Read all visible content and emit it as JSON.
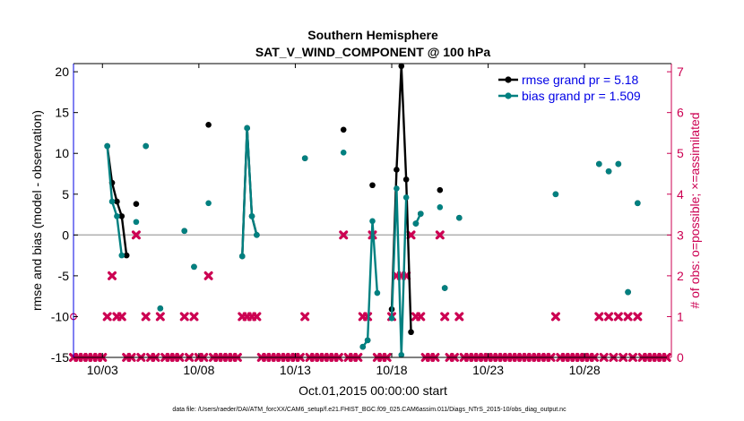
{
  "chart_data": {
    "type": "line",
    "title": "Southern Hemisphere",
    "subtitle": "SAT_V_WIND_COMPONENT @ 100 hPa",
    "xlabel": "Oct.01,2015 00:00:00 start",
    "ylabel_left": "rmse and bias (model - observation)",
    "ylabel_right": "# of obs: o=possible; ×=assimilated",
    "footnote": "data file: /Users/raeder/DAI/ATM_forcXX/CAM6_setup/f.e21.FHIST_BGC.f09_025.CAM6assim.011/Diags_NTrS_2015-10/obs_diag_output.nc",
    "xlim": [
      1.0,
      32.0
    ],
    "ylim_left": [
      -15,
      21
    ],
    "ylim_right": [
      0,
      7.2
    ],
    "yticks_left": [
      -15,
      -10,
      -5,
      0,
      5,
      10,
      15,
      20
    ],
    "yticks_right": [
      0,
      1,
      2,
      3,
      4,
      5,
      6,
      7
    ],
    "xticks": [
      {
        "x": 2.5,
        "label": "10/03"
      },
      {
        "x": 7.5,
        "label": "10/08"
      },
      {
        "x": 12.5,
        "label": "10/13"
      },
      {
        "x": 17.5,
        "label": "10/18"
      },
      {
        "x": 22.5,
        "label": "10/23"
      },
      {
        "x": 27.5,
        "label": "10/28"
      }
    ],
    "legend": [
      {
        "label": "rmse grand pr = 5.18",
        "color": "#000000"
      },
      {
        "label": "bias grand pr = 1.509",
        "color": "#008080"
      }
    ],
    "zero_line_color": "#b3b3b3",
    "colors": {
      "rmse": "#000000",
      "bias": "#008080",
      "obs": "#cc0052"
    },
    "series": [
      {
        "name": "rmse",
        "segments": [
          [
            [
              2.75,
              10.9
            ],
            [
              3.0,
              6.4
            ],
            [
              3.25,
              4.1
            ],
            [
              3.5,
              2.3
            ],
            [
              3.75,
              -2.5
            ]
          ],
          [
            [
              4.25,
              3.8
            ]
          ],
          [
            [
              4.75,
              10.9
            ]
          ],
          [
            [
              5.5,
              -9.0
            ]
          ],
          [
            [
              6.75,
              0.5
            ]
          ],
          [
            [
              7.25,
              -3.9
            ]
          ],
          [
            [
              8.0,
              13.5
            ]
          ],
          [
            [
              9.75,
              -2.6
            ],
            [
              10.0,
              13.1
            ],
            [
              10.25,
              2.3
            ],
            [
              10.5,
              0.0
            ]
          ],
          [
            [
              13.0,
              9.4
            ]
          ],
          [
            [
              15.0,
              12.9
            ]
          ],
          [
            [
              16.0,
              -13.7
            ]
          ],
          [
            [
              16.25,
              -12.9
            ]
          ],
          [
            [
              16.5,
              6.1
            ]
          ],
          [
            [
              17.5,
              -9.1
            ],
            [
              17.75,
              8.0
            ],
            [
              18.0,
              20.7
            ],
            [
              18.25,
              6.8
            ],
            [
              18.5,
              -11.9
            ]
          ],
          [
            [
              18.75,
              1.4
            ]
          ],
          [
            [
              19.0,
              2.6
            ]
          ],
          [
            [
              20.0,
              5.5
            ]
          ],
          [
            [
              20.25,
              -6.5
            ]
          ],
          [
            [
              21.0,
              2.1
            ]
          ],
          [
            [
              26.0,
              5.0
            ]
          ],
          [
            [
              28.25,
              8.7
            ]
          ],
          [
            [
              28.75,
              7.8
            ]
          ],
          [
            [
              29.25,
              8.7
            ]
          ],
          [
            [
              29.75,
              -7.0
            ]
          ],
          [
            [
              30.25,
              3.9
            ]
          ]
        ]
      },
      {
        "name": "bias",
        "segments": [
          [
            [
              2.75,
              10.9
            ],
            [
              3.0,
              4.1
            ],
            [
              3.25,
              2.3
            ],
            [
              3.5,
              -2.5
            ]
          ],
          [
            [
              4.25,
              1.6
            ]
          ],
          [
            [
              4.75,
              10.9
            ]
          ],
          [
            [
              5.5,
              -9.0
            ]
          ],
          [
            [
              6.75,
              0.5
            ]
          ],
          [
            [
              7.25,
              -3.9
            ]
          ],
          [
            [
              8.0,
              3.9
            ]
          ],
          [
            [
              9.75,
              -2.6
            ],
            [
              10.0,
              13.1
            ],
            [
              10.25,
              2.3
            ],
            [
              10.5,
              0.0
            ]
          ],
          [
            [
              13.0,
              9.4
            ]
          ],
          [
            [
              15.0,
              10.1
            ]
          ],
          [
            [
              16.0,
              -13.7
            ],
            [
              16.25,
              -12.9
            ],
            [
              16.5,
              1.7
            ],
            [
              16.75,
              -7.1
            ]
          ],
          [
            [
              17.5,
              -10.2
            ],
            [
              17.75,
              5.7
            ],
            [
              18.0,
              -14.7
            ],
            [
              18.25,
              4.6
            ]
          ],
          [
            [
              18.75,
              1.4
            ],
            [
              19.0,
              2.6
            ]
          ],
          [
            [
              20.0,
              3.4
            ]
          ],
          [
            [
              20.25,
              -6.5
            ]
          ],
          [
            [
              21.0,
              2.1
            ]
          ],
          [
            [
              26.0,
              5.0
            ]
          ],
          [
            [
              28.25,
              8.7
            ]
          ],
          [
            [
              28.75,
              7.8
            ]
          ],
          [
            [
              29.25,
              8.7
            ]
          ],
          [
            [
              29.75,
              -7.0
            ]
          ],
          [
            [
              30.25,
              3.9
            ]
          ]
        ]
      }
    ],
    "obs_possible": [
      [
        1.0,
        1
      ]
    ],
    "obs_assimilated": [
      [
        1.0,
        0
      ],
      [
        1.25,
        0
      ],
      [
        1.5,
        0
      ],
      [
        1.75,
        0
      ],
      [
        2.0,
        0
      ],
      [
        2.25,
        0
      ],
      [
        2.5,
        0
      ],
      [
        2.75,
        1
      ],
      [
        3.0,
        2
      ],
      [
        3.25,
        1
      ],
      [
        3.5,
        1
      ],
      [
        3.75,
        0
      ],
      [
        4.0,
        0
      ],
      [
        4.25,
        3
      ],
      [
        4.5,
        0
      ],
      [
        4.75,
        1
      ],
      [
        5.0,
        0
      ],
      [
        5.25,
        0
      ],
      [
        5.5,
        1
      ],
      [
        5.75,
        0
      ],
      [
        6.0,
        0
      ],
      [
        6.25,
        0
      ],
      [
        6.5,
        0
      ],
      [
        6.75,
        1
      ],
      [
        7.0,
        0
      ],
      [
        7.25,
        1
      ],
      [
        7.5,
        0
      ],
      [
        7.75,
        0
      ],
      [
        8.0,
        2
      ],
      [
        8.25,
        0
      ],
      [
        8.5,
        0
      ],
      [
        8.75,
        0
      ],
      [
        9.0,
        0
      ],
      [
        9.25,
        0
      ],
      [
        9.5,
        0
      ],
      [
        9.75,
        1
      ],
      [
        10.0,
        1
      ],
      [
        10.25,
        1
      ],
      [
        10.5,
        1
      ],
      [
        10.75,
        0
      ],
      [
        11.0,
        0
      ],
      [
        11.25,
        0
      ],
      [
        11.5,
        0
      ],
      [
        11.75,
        0
      ],
      [
        12.0,
        0
      ],
      [
        12.25,
        0
      ],
      [
        12.5,
        0
      ],
      [
        12.75,
        0
      ],
      [
        13.0,
        1
      ],
      [
        13.25,
        0
      ],
      [
        13.5,
        0
      ],
      [
        13.75,
        0
      ],
      [
        14.0,
        0
      ],
      [
        14.25,
        0
      ],
      [
        14.5,
        0
      ],
      [
        14.75,
        0
      ],
      [
        15.0,
        3
      ],
      [
        15.25,
        0
      ],
      [
        15.5,
        0
      ],
      [
        15.75,
        0
      ],
      [
        16.0,
        1
      ],
      [
        16.25,
        1
      ],
      [
        16.5,
        3
      ],
      [
        16.75,
        0
      ],
      [
        17.0,
        0
      ],
      [
        17.25,
        0
      ],
      [
        17.5,
        1
      ],
      [
        17.75,
        2
      ],
      [
        18.0,
        2
      ],
      [
        18.25,
        2
      ],
      [
        18.5,
        3
      ],
      [
        18.75,
        1
      ],
      [
        19.0,
        1
      ],
      [
        19.25,
        0
      ],
      [
        19.5,
        0
      ],
      [
        19.75,
        0
      ],
      [
        20.0,
        3
      ],
      [
        20.25,
        1
      ],
      [
        20.5,
        0
      ],
      [
        20.75,
        0
      ],
      [
        21.0,
        1
      ],
      [
        21.25,
        0
      ],
      [
        21.5,
        0
      ],
      [
        21.75,
        0
      ],
      [
        22.0,
        0
      ],
      [
        22.25,
        0
      ],
      [
        22.5,
        0
      ],
      [
        22.75,
        0
      ],
      [
        23.0,
        0
      ],
      [
        23.25,
        0
      ],
      [
        23.5,
        0
      ],
      [
        23.75,
        0
      ],
      [
        24.0,
        0
      ],
      [
        24.25,
        0
      ],
      [
        24.5,
        0
      ],
      [
        24.75,
        0
      ],
      [
        25.0,
        0
      ],
      [
        25.25,
        0
      ],
      [
        25.5,
        0
      ],
      [
        25.75,
        0
      ],
      [
        26.0,
        1
      ],
      [
        26.25,
        0
      ],
      [
        26.5,
        0
      ],
      [
        26.75,
        0
      ],
      [
        27.0,
        0
      ],
      [
        27.25,
        0
      ],
      [
        27.5,
        0
      ],
      [
        27.75,
        0
      ],
      [
        28.0,
        0
      ],
      [
        28.25,
        1
      ],
      [
        28.5,
        0
      ],
      [
        28.75,
        1
      ],
      [
        29.0,
        0
      ],
      [
        29.25,
        1
      ],
      [
        29.5,
        0
      ],
      [
        29.75,
        1
      ],
      [
        30.0,
        0
      ],
      [
        30.25,
        1
      ],
      [
        30.5,
        0
      ],
      [
        30.75,
        0
      ],
      [
        31.0,
        0
      ],
      [
        31.25,
        0
      ],
      [
        31.5,
        0
      ],
      [
        31.75,
        0
      ]
    ]
  }
}
